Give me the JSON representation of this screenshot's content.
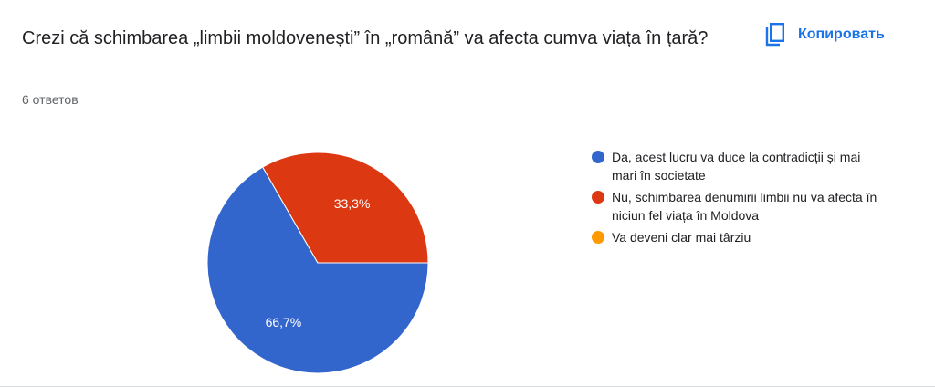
{
  "question": {
    "title": "Crezi că schimbarea „limbii moldovenești” în „română” va afecta cumva viața în țară?",
    "response_count": "6 ответов"
  },
  "toolbar": {
    "copy_label": "Копировать",
    "copy_icon": "copy-icon"
  },
  "colors": {
    "accent": "#1a73e8",
    "series": [
      "#3366cc",
      "#dc3912",
      "#ff9900"
    ]
  },
  "chart_data": {
    "type": "pie",
    "title": "",
    "categories": [
      "Da, acest lucru va duce la contradicții și mai mari în societate",
      "Nu, schimbarea denumirii limbii nu va afecta în niciun fel viața în Moldova",
      "Va deveni clar mai târziu"
    ],
    "values": [
      66.7,
      33.3,
      0
    ],
    "data_labels": [
      "66,7%",
      "33,3%",
      ""
    ],
    "colors": [
      "#3366cc",
      "#dc3912",
      "#ff9900"
    ],
    "legend_position": "right"
  }
}
